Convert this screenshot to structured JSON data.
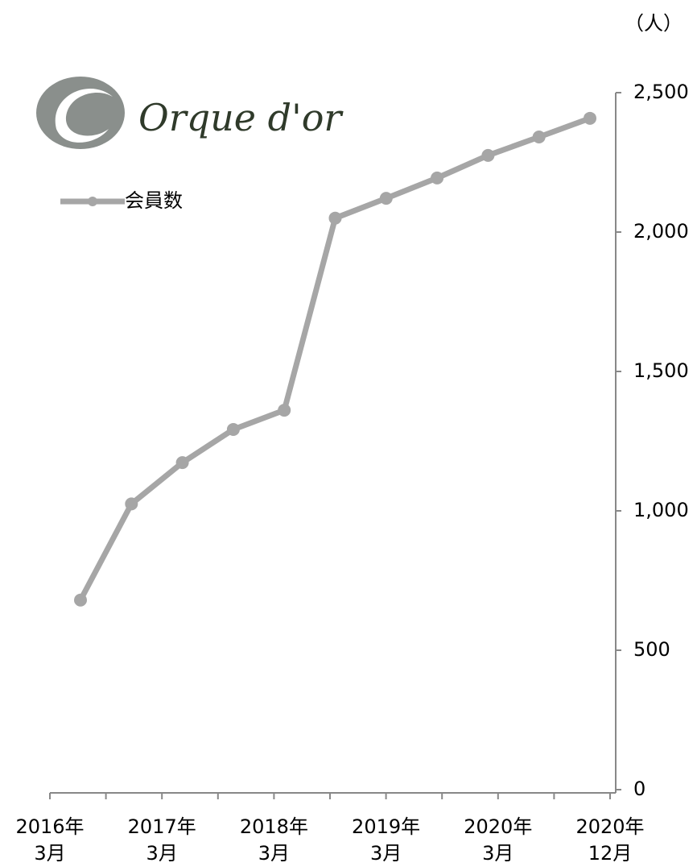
{
  "chart_data": {
    "type": "line",
    "logo": "Orque d'or",
    "unit": "（人）",
    "categories": [
      null,
      null,
      null,
      null,
      null,
      null,
      null,
      null,
      null,
      null,
      null
    ],
    "xtick_labels": [
      [
        "2016年",
        "3月"
      ],
      [
        "2017年",
        "3月"
      ],
      [
        "2018年",
        "3月"
      ],
      [
        "2019年",
        "3月"
      ],
      [
        "2020年",
        "3月"
      ],
      [
        "2020年",
        "12月"
      ]
    ],
    "series": [
      {
        "name": "会員数",
        "color": "#a6a6a6",
        "values": [
          680,
          1025,
          1173,
          1292,
          1361,
          2050,
          2121,
          2194,
          2275,
          2341,
          2408
        ]
      }
    ],
    "ylim": [
      0,
      2500
    ],
    "yticks": [
      0,
      500,
      {
        "value": 1000,
        "label": "1,000"
      },
      {
        "value": 1500,
        "label": "1,500"
      },
      {
        "value": 2000,
        "label": "2,000"
      },
      {
        "value": 2500,
        "label": "2,500"
      }
    ],
    "axis_side": "right",
    "legend": "top-left"
  }
}
